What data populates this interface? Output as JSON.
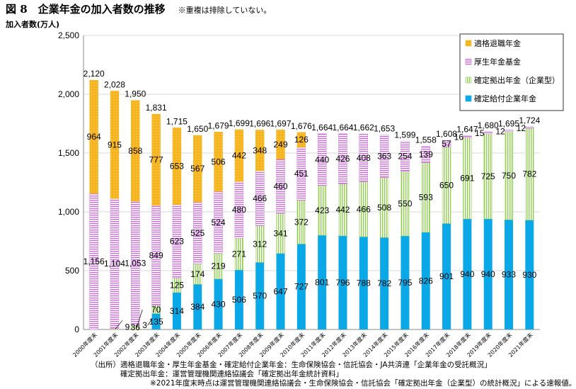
{
  "figure": {
    "title": "図 8　企業年金の加入者数の推移",
    "note": "※重複は排除していない。"
  },
  "chart_data": {
    "type": "bar",
    "stacked": true,
    "title": "企業年金の加入者数の推移",
    "ylabel": "加入者数(万人)",
    "xlabel": "",
    "ylim": [
      0,
      2500
    ],
    "yticks": [
      "0",
      "500",
      "1,000",
      "1,500",
      "2,000",
      "2,500"
    ],
    "ytick_values": [
      0,
      500,
      1000,
      1500,
      2000,
      2500
    ],
    "grid": true,
    "legend_position": "top-right",
    "categories": [
      "2000年度末",
      "2001年度末",
      "2002年度末",
      "2003年度末",
      "2004年度末",
      "2005年度末",
      "2006年度末",
      "2007年度末",
      "2008年度末",
      "2009年度末",
      "2010年度末",
      "2011年度末",
      "2012年度末",
      "2013年度末",
      "2014年度末",
      "2015年度末",
      "2016年度末",
      "2017年度末",
      "2018年度末",
      "2019年度末",
      "2020年度末",
      "2021年度末"
    ],
    "series": [
      {
        "name": "確定給付企業年金",
        "color": "#0aa8e6",
        "pattern": "solid",
        "values": [
          0,
          0,
          0,
          135,
          314,
          384,
          430,
          506,
          570,
          647,
          727,
          801,
          796,
          788,
          782,
          795,
          826,
          901,
          940,
          940,
          933,
          930
        ],
        "labels": [
          "",
          "",
          "",
          "135",
          "314",
          "384",
          "430",
          "506",
          "570",
          "647",
          "727",
          "801",
          "796",
          "788",
          "782",
          "795",
          "826",
          "901",
          "940",
          "940",
          "933",
          "930"
        ]
      },
      {
        "name": "確定拠出年金（企業型）",
        "color": "#92d050",
        "pattern": "vstripe",
        "values": [
          0,
          9,
          36,
          70,
          125,
          174,
          219,
          271,
          312,
          341,
          372,
          423,
          442,
          466,
          508,
          550,
          593,
          650,
          691,
          725,
          750,
          782
        ],
        "labels": [
          "",
          "9",
          "36",
          "70",
          "125",
          "174",
          "219",
          "271",
          "312",
          "341",
          "372",
          "423",
          "442",
          "466",
          "508",
          "550",
          "593",
          "650",
          "691",
          "725",
          "750",
          "782"
        ]
      },
      {
        "name": "厚生年金基金",
        "color": "#cc66dd",
        "pattern": "hstripe",
        "values": [
          1156,
          1104,
          1053,
          849,
          623,
          525,
          524,
          480,
          466,
          460,
          451,
          440,
          426,
          408,
          363,
          254,
          139,
          57,
          16,
          15,
          12,
          12
        ],
        "labels": [
          "1,156",
          "1,104",
          "1,053",
          "849",
          "623",
          "525",
          "524",
          "480",
          "466",
          "460",
          "451",
          "440",
          "426",
          "408",
          "363",
          "254",
          "139",
          "57",
          "16",
          "15",
          "12",
          "12"
        ]
      },
      {
        "name": "適格退職年金",
        "color": "#f5b31c",
        "pattern": "dots",
        "values": [
          964,
          915,
          858,
          777,
          653,
          567,
          506,
          442,
          348,
          249,
          126,
          0,
          0,
          0,
          0,
          0,
          0,
          0,
          0,
          0,
          0,
          0
        ],
        "labels": [
          "964",
          "915",
          "858",
          "777",
          "653",
          "567",
          "506",
          "442",
          "348",
          "249",
          "126",
          "",
          "",
          "",
          "",
          "",
          "",
          "",
          "",
          "",
          "",
          ""
        ]
      }
    ],
    "totals": [
      2120,
      2028,
      1950,
      1831,
      1715,
      1650,
      1679,
      1699,
      1696,
      1697,
      1676,
      1664,
      1664,
      1662,
      1653,
      1599,
      1558,
      1608,
      1647,
      1680,
      1695,
      1724
    ],
    "total_labels": [
      "2,120",
      "2,028",
      "1,950",
      "1,831",
      "1,715",
      "1,650",
      "1,679",
      "1,699",
      "1,696",
      "1,697",
      "1,676",
      "1,664",
      "1,664",
      "1,662",
      "1,653",
      "1,599",
      "1,558",
      "1,608",
      "1,647",
      "1,680",
      "1,695",
      "1,724"
    ],
    "extra_labels": [
      "3"
    ],
    "legend": [
      "適格退職年金",
      "厚生年金基金",
      "確定拠出年金（企業型）",
      "確定給付企業年金"
    ]
  },
  "source_notes": [
    "（出所）適格退職年金・厚生年金基金・確定給付企業年金：生命保険協会・信託協会・JA共済連「企業年金の受託概況」",
    "　　　　確定拠出年金：運営管理機関連絡協議会「確定拠出年金統計資料」",
    "　　　　　　　　※2021年度末時点は運営管理機関連絡協議会・生命保険協会・信託協会「確定拠出年金（企業型）の統計概況」による速報値。"
  ]
}
